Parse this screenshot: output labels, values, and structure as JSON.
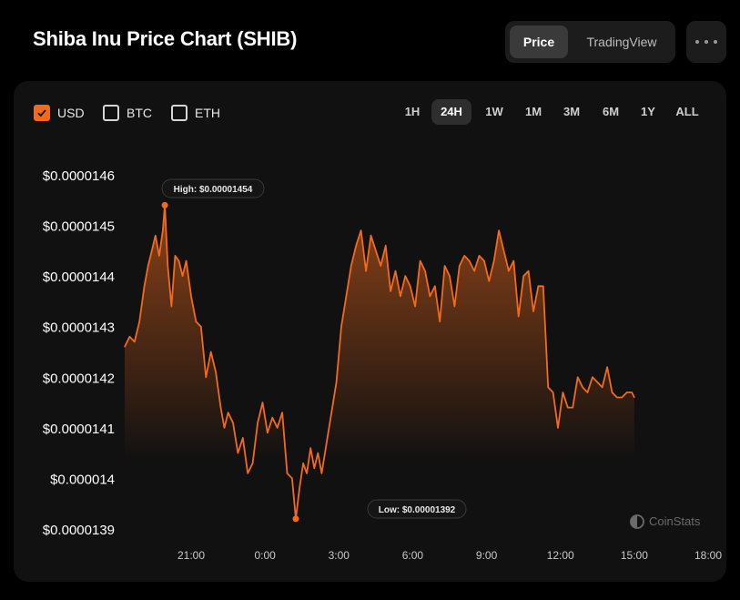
{
  "page": {
    "title": "Shiba Inu Price Chart (SHIB)"
  },
  "view_toggle": {
    "price_label": "Price",
    "tradingview_label": "TradingView"
  },
  "more_icon": "ellipsis-icon",
  "currencies": [
    {
      "label": "USD",
      "checked": true
    },
    {
      "label": "BTC",
      "checked": false
    },
    {
      "label": "ETH",
      "checked": false
    }
  ],
  "ranges": [
    {
      "label": "1H",
      "active": false
    },
    {
      "label": "24H",
      "active": true
    },
    {
      "label": "1W",
      "active": false
    },
    {
      "label": "1M",
      "active": false
    },
    {
      "label": "3M",
      "active": false
    },
    {
      "label": "6M",
      "active": false
    },
    {
      "label": "1Y",
      "active": false
    },
    {
      "label": "ALL",
      "active": false
    }
  ],
  "watermark": "CoinStats",
  "colors": {
    "accent": "#f26b1d",
    "card": "#111111",
    "background": "#000000"
  },
  "chart_data": {
    "type": "area",
    "series_color": "#f26b1d",
    "y_tick_labels": [
      "$0.0000146",
      "$0.0000145",
      "$0.0000144",
      "$0.0000143",
      "$0.0000142",
      "$0.0000141",
      "$0.000014",
      "$0.0000139"
    ],
    "y_ticks": [
      1.46e-05,
      1.45e-05,
      1.44e-05,
      1.43e-05,
      1.42e-05,
      1.41e-05,
      1.4e-05,
      1.39e-05
    ],
    "ylim": [
      1.39e-05,
      1.46e-05
    ],
    "x_tick_labels": [
      "21:00",
      "0:00",
      "3:00",
      "6:00",
      "9:00",
      "12:00",
      "15:00",
      "18:00"
    ],
    "x_ticks": [
      0,
      3,
      6,
      9,
      12,
      15,
      18,
      21
    ],
    "xlim": [
      -2.7,
      21
    ],
    "grid": false,
    "high": {
      "label": "High: $0.00001454",
      "x": -1.07,
      "y": 1.454e-05
    },
    "low": {
      "label": "Low: $0.00001392",
      "x": 4.25,
      "y": 1.392e-05
    },
    "x": [
      -2.7,
      -2.5,
      -2.3,
      -2.1,
      -1.9,
      -1.75,
      -1.6,
      -1.45,
      -1.3,
      -1.15,
      -1.07,
      -0.95,
      -0.8,
      -0.65,
      -0.5,
      -0.35,
      -0.2,
      0.0,
      0.2,
      0.4,
      0.6,
      0.8,
      1.0,
      1.2,
      1.35,
      1.5,
      1.7,
      1.9,
      2.1,
      2.3,
      2.5,
      2.7,
      2.9,
      3.1,
      3.3,
      3.5,
      3.7,
      3.9,
      4.1,
      4.25,
      4.4,
      4.55,
      4.7,
      4.85,
      5.0,
      5.15,
      5.3,
      5.5,
      5.7,
      5.9,
      6.1,
      6.3,
      6.5,
      6.7,
      6.9,
      7.1,
      7.3,
      7.5,
      7.7,
      7.9,
      8.1,
      8.3,
      8.5,
      8.7,
      8.9,
      9.1,
      9.3,
      9.5,
      9.7,
      9.9,
      10.1,
      10.3,
      10.5,
      10.7,
      10.9,
      11.1,
      11.3,
      11.5,
      11.7,
      11.9,
      12.1,
      12.3,
      12.5,
      12.7,
      12.9,
      13.1,
      13.3,
      13.5,
      13.7,
      13.9,
      14.1,
      14.3,
      14.5,
      14.7,
      14.9,
      15.1,
      15.3,
      15.5,
      15.7,
      15.9,
      16.1,
      16.3,
      16.5,
      16.7,
      16.9,
      17.1,
      17.3,
      17.5,
      17.7,
      17.9,
      18.0
    ],
    "values": [
      1.426e-05,
      1.428e-05,
      1.427e-05,
      1.431e-05,
      1.438e-05,
      1.442e-05,
      1.445e-05,
      1.448e-05,
      1.444e-05,
      1.449e-05,
      1.454e-05,
      1.442e-05,
      1.434e-05,
      1.444e-05,
      1.443e-05,
      1.44e-05,
      1.443e-05,
      1.436e-05,
      1.431e-05,
      1.43e-05,
      1.42e-05,
      1.425e-05,
      1.421e-05,
      1.414e-05,
      1.41e-05,
      1.413e-05,
      1.411e-05,
      1.405e-05,
      1.408e-05,
      1.401e-05,
      1.403e-05,
      1.411e-05,
      1.415e-05,
      1.409e-05,
      1.412e-05,
      1.41e-05,
      1.413e-05,
      1.401e-05,
      1.4e-05,
      1.392e-05,
      1.398e-05,
      1.403e-05,
      1.401e-05,
      1.406e-05,
      1.402e-05,
      1.405e-05,
      1.401e-05,
      1.407e-05,
      1.413e-05,
      1.419e-05,
      1.43e-05,
      1.436e-05,
      1.442e-05,
      1.446e-05,
      1.449e-05,
      1.441e-05,
      1.448e-05,
      1.445e-05,
      1.442e-05,
      1.446e-05,
      1.437e-05,
      1.441e-05,
      1.436e-05,
      1.44e-05,
      1.438e-05,
      1.434e-05,
      1.443e-05,
      1.441e-05,
      1.436e-05,
      1.438e-05,
      1.431e-05,
      1.442e-05,
      1.44e-05,
      1.434e-05,
      1.442e-05,
      1.444e-05,
      1.443e-05,
      1.441e-05,
      1.444e-05,
      1.443e-05,
      1.439e-05,
      1.443e-05,
      1.449e-05,
      1.445e-05,
      1.441e-05,
      1.443e-05,
      1.432e-05,
      1.44e-05,
      1.441e-05,
      1.433e-05,
      1.438e-05,
      1.438e-05,
      1.418e-05,
      1.417e-05,
      1.41e-05,
      1.417e-05,
      1.414e-05,
      1.414e-05,
      1.42e-05,
      1.418e-05,
      1.417e-05,
      1.42e-05,
      1.419e-05,
      1.418e-05,
      1.422e-05,
      1.417e-05,
      1.416e-05,
      1.416e-05,
      1.417e-05,
      1.417e-05,
      1.416e-05
    ]
  }
}
